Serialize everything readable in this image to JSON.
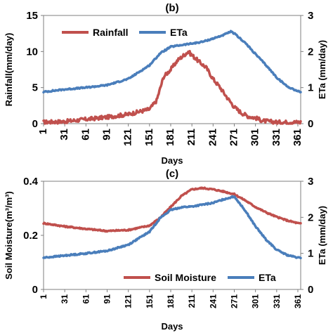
{
  "chart_data": [
    {
      "type": "line",
      "title": "(b)",
      "xlabel": "Days",
      "ylabel_left": "Rainfall(mm/day)",
      "ylabel_right": "ETa (mm/day)",
      "xlim": [
        1,
        365
      ],
      "ylim_left": [
        0,
        15
      ],
      "ylim_right": [
        0,
        3
      ],
      "x_ticks": [
        1,
        31,
        61,
        91,
        121,
        151,
        181,
        211,
        241,
        271,
        301,
        331,
        361
      ],
      "y_ticks_left": [
        0,
        5,
        10,
        15
      ],
      "y_ticks_right": [
        0,
        1,
        2,
        3
      ],
      "grid": false,
      "legend_position": "top-left",
      "series": [
        {
          "name": "Rainfall",
          "axis": "left",
          "color": "#c0504d",
          "x": [
            1,
            31,
            61,
            91,
            121,
            151,
            161,
            171,
            176,
            181,
            191,
            201,
            206,
            211,
            221,
            231,
            241,
            251,
            261,
            271,
            281,
            291,
            301,
            311,
            331,
            361,
            365
          ],
          "y": [
            0.2,
            0.3,
            0.6,
            0.9,
            1.3,
            2.0,
            3.2,
            6.5,
            7.0,
            7.5,
            8.8,
            9.6,
            10.0,
            9.5,
            8.6,
            7.8,
            6.2,
            5.0,
            3.6,
            2.3,
            1.5,
            1.0,
            0.8,
            0.4,
            0.2,
            0.2,
            0.2
          ]
        },
        {
          "name": "ETa",
          "axis": "right",
          "color": "#4a7ebb",
          "x": [
            1,
            31,
            61,
            91,
            121,
            151,
            166,
            181,
            196,
            211,
            226,
            241,
            256,
            266,
            271,
            286,
            301,
            316,
            331,
            346,
            361,
            365
          ],
          "y": [
            0.88,
            0.95,
            1.0,
            1.07,
            1.24,
            1.62,
            1.95,
            2.13,
            2.18,
            2.22,
            2.27,
            2.36,
            2.46,
            2.55,
            2.5,
            2.25,
            1.93,
            1.62,
            1.28,
            1.03,
            0.9,
            0.88
          ]
        }
      ]
    },
    {
      "type": "line",
      "title": "(c)",
      "xlabel": "Days",
      "ylabel_left": "Soil Moisture(m³/m³)",
      "ylabel_right": "ETa (mm/day)",
      "xlim": [
        1,
        365
      ],
      "ylim_left": [
        0,
        0.4
      ],
      "ylim_right": [
        0,
        3
      ],
      "x_ticks": [
        1,
        31,
        61,
        91,
        121,
        151,
        181,
        211,
        241,
        271,
        301,
        331,
        361
      ],
      "y_ticks_left": [
        0,
        0.2,
        0.4
      ],
      "y_ticks_right": [
        0,
        1,
        2,
        3
      ],
      "grid": false,
      "legend_position": "bottom-center",
      "series": [
        {
          "name": "Soil Moisture",
          "axis": "left",
          "color": "#c0504d",
          "x": [
            1,
            31,
            61,
            91,
            121,
            151,
            166,
            181,
            196,
            211,
            226,
            241,
            256,
            271,
            286,
            301,
            316,
            331,
            346,
            361,
            365
          ],
          "y": [
            0.245,
            0.233,
            0.224,
            0.216,
            0.22,
            0.236,
            0.265,
            0.305,
            0.345,
            0.37,
            0.375,
            0.37,
            0.362,
            0.352,
            0.33,
            0.305,
            0.285,
            0.268,
            0.255,
            0.245,
            0.243
          ]
        },
        {
          "name": "ETa",
          "axis": "right",
          "color": "#4a7ebb",
          "x": [
            1,
            31,
            61,
            91,
            121,
            151,
            166,
            181,
            196,
            211,
            226,
            241,
            256,
            271,
            286,
            301,
            316,
            331,
            346,
            361,
            365
          ],
          "y": [
            0.88,
            0.94,
            1.0,
            1.07,
            1.24,
            1.6,
            1.98,
            2.2,
            2.28,
            2.3,
            2.35,
            2.4,
            2.5,
            2.58,
            2.2,
            1.75,
            1.38,
            1.1,
            0.95,
            0.88,
            0.87
          ]
        }
      ]
    }
  ]
}
